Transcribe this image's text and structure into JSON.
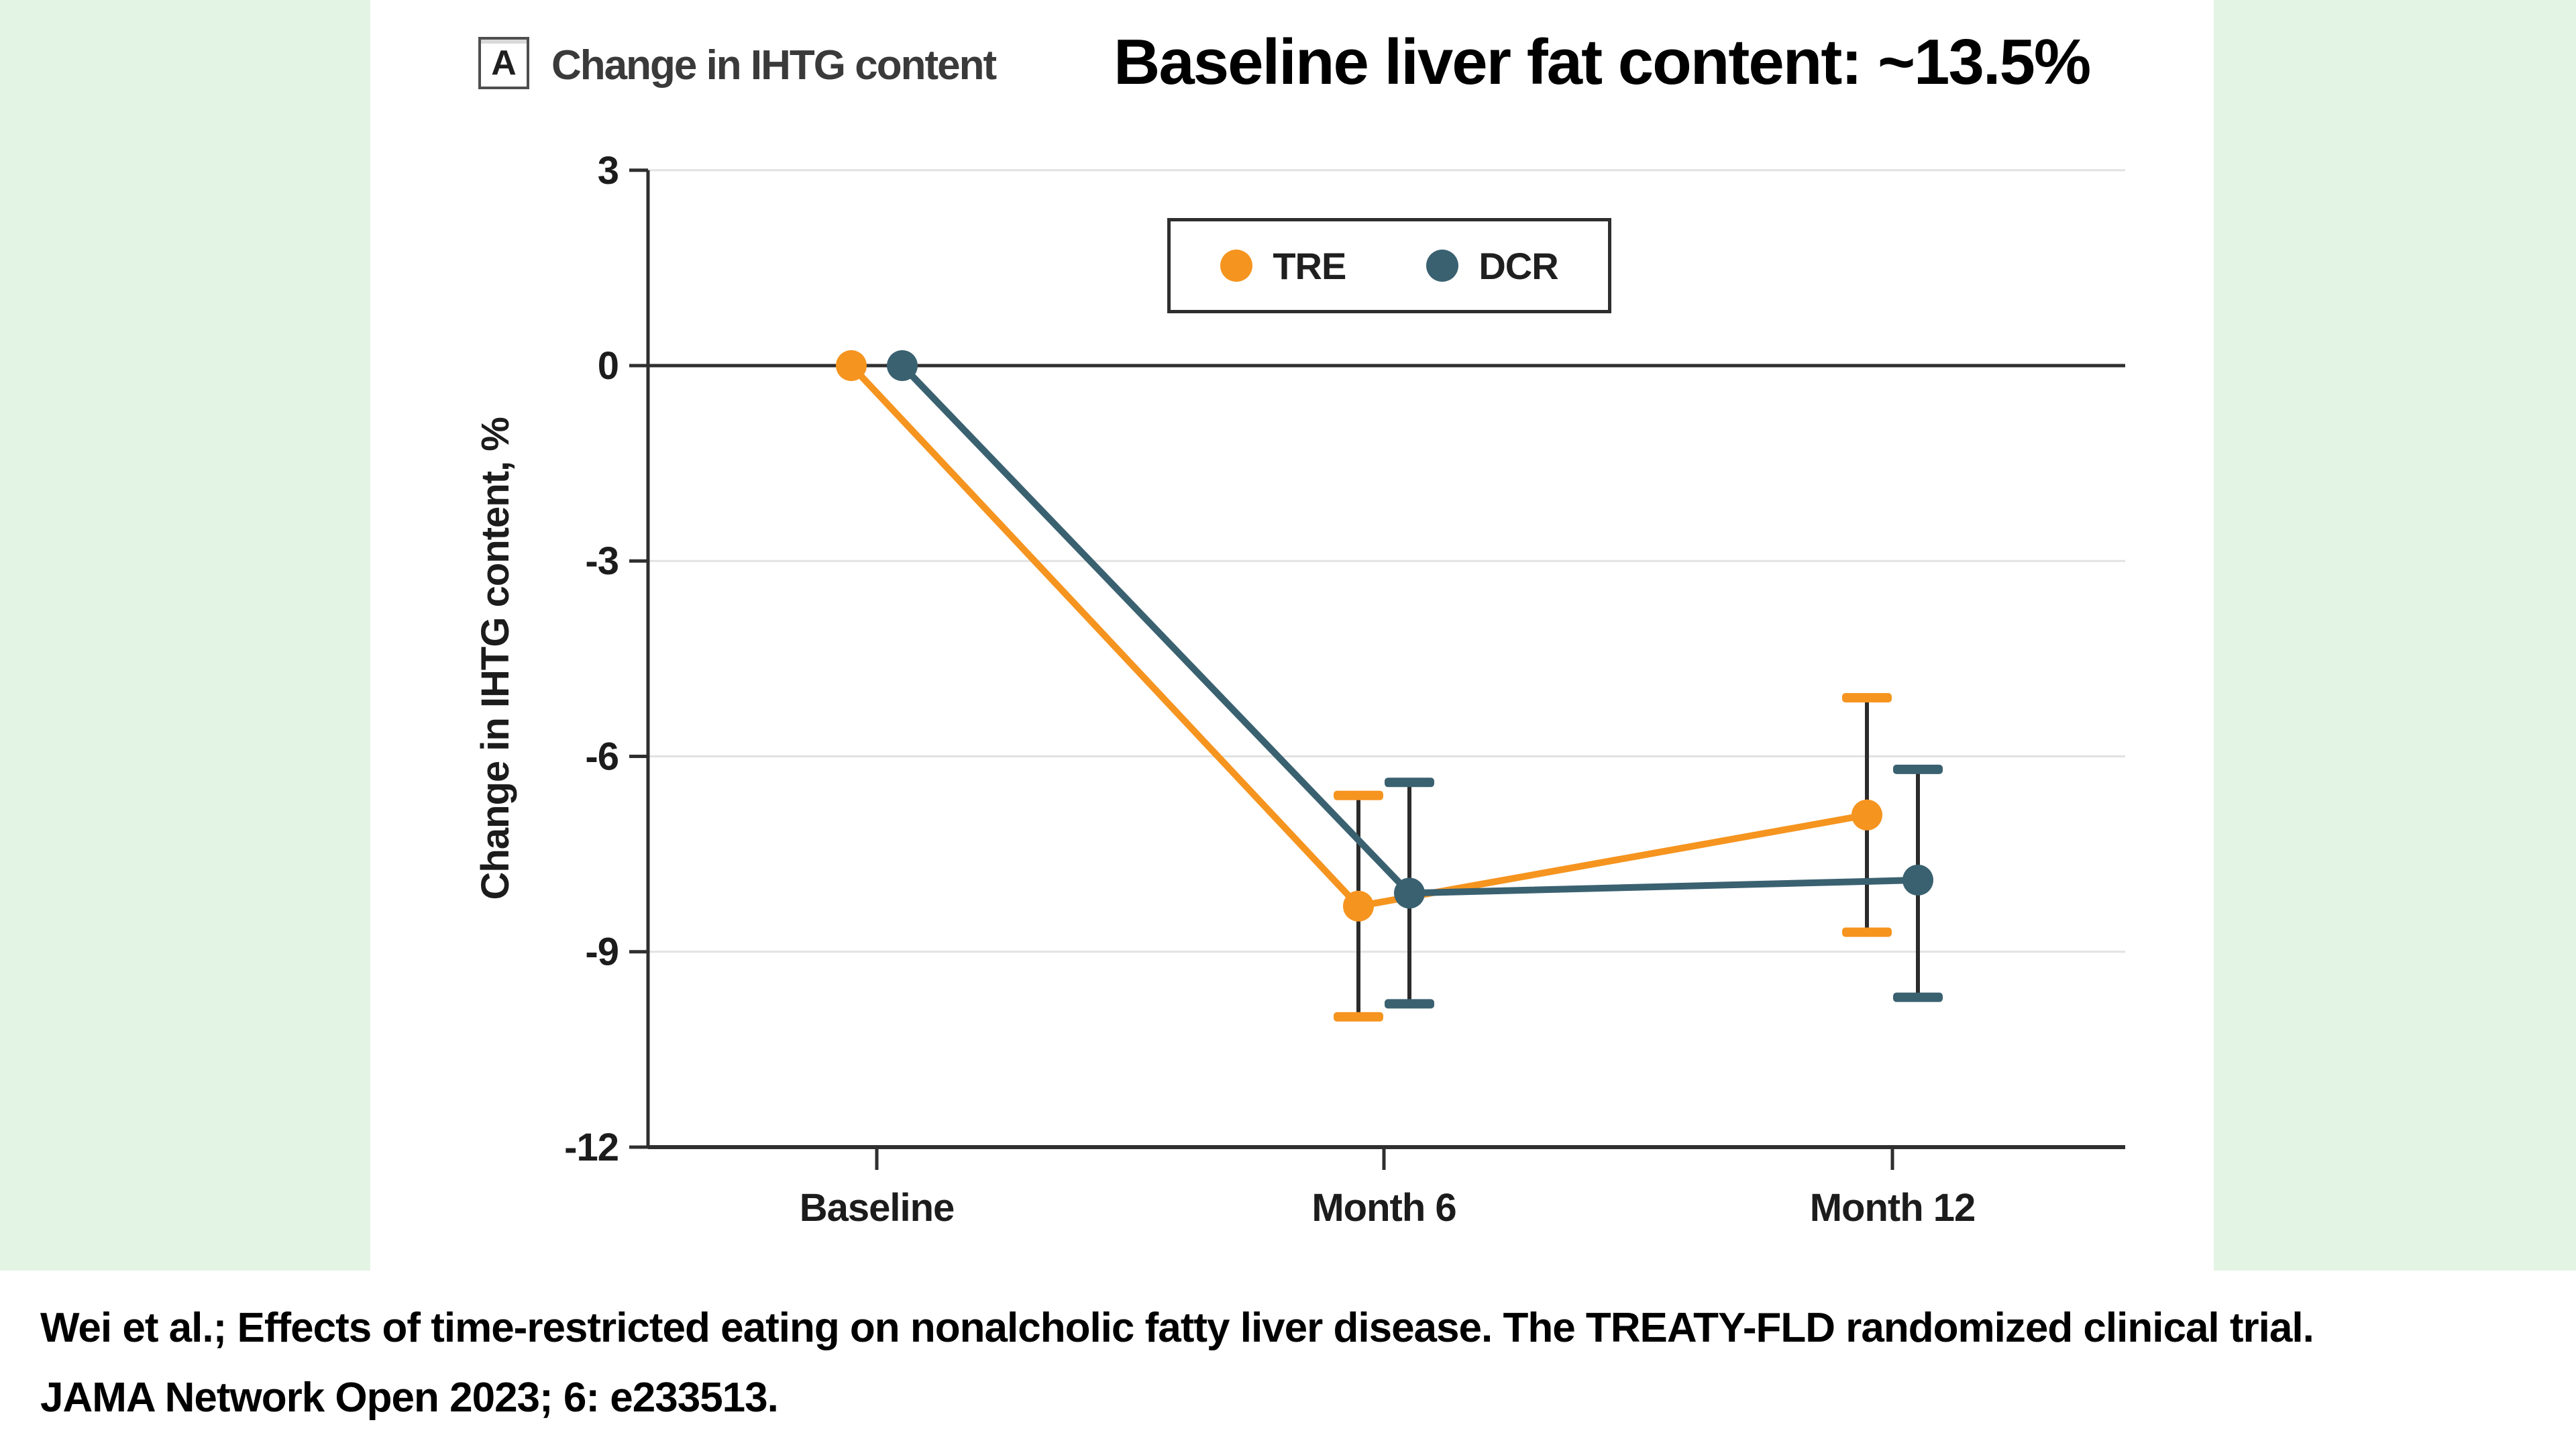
{
  "header": {
    "panel_label": "A",
    "panel_title": "Change in IHTG content",
    "main_title": "Baseline liver fat content: ~13.5%"
  },
  "legend": {
    "items": [
      {
        "label": "TRE",
        "color": "#F5941F"
      },
      {
        "label": "DCR",
        "color": "#3A6170"
      }
    ]
  },
  "citation": {
    "line1": "Wei et al.; Effects of time-restricted eating on nonalcholic fatty liver disease. The TREATY-FLD randomized clinical trial.",
    "line2": "JAMA Network Open 2023; 6: e233513."
  },
  "colors": {
    "background_green": "#E3F4E5",
    "panel_white": "#ffffff",
    "axis_dark": "#2f2f2f",
    "gridline_light": "#e2e2e2",
    "errorbar_stem": "#2b2b2b",
    "tre_orange": "#F5941F",
    "dcr_teal": "#3A6170"
  },
  "chart_data": {
    "type": "line",
    "title": "Change in IHTG content",
    "categories": [
      "Baseline",
      "Month 6",
      "Month 12"
    ],
    "series": [
      {
        "name": "TRE",
        "color": "#F5941F",
        "values": [
          0,
          -8.3,
          -6.9
        ],
        "ci_low": [
          null,
          -10.0,
          -8.7
        ],
        "ci_high": [
          null,
          -6.6,
          -5.1
        ]
      },
      {
        "name": "DCR",
        "color": "#3A6170",
        "values": [
          0,
          -8.1,
          -7.9
        ],
        "ci_low": [
          null,
          -9.8,
          -9.7
        ],
        "ci_high": [
          null,
          -6.4,
          -6.2
        ]
      }
    ],
    "xlabel": "",
    "ylabel": "Change in IHTG content, %",
    "yticks": [
      3,
      0,
      -3,
      -6,
      -9,
      -12
    ],
    "ylim": [
      -12,
      3
    ],
    "zero_line": true,
    "grid": "horizontal-light",
    "legend_position": "top-center",
    "error_bars": true
  }
}
